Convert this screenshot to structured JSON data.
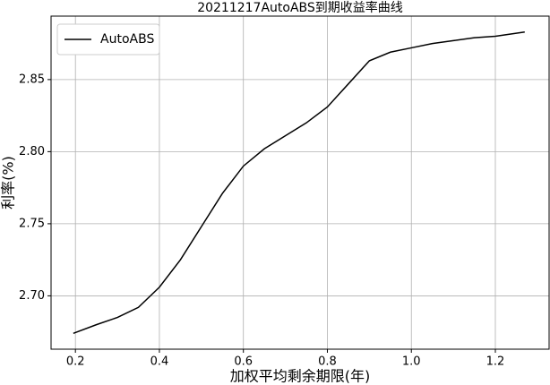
{
  "chart_data": {
    "type": "line",
    "title": "20211217AutoABS到期收益率曲线",
    "x_label": "加权平均剩余期限(年)",
    "y_label": "利率(%)",
    "x": [
      0.195,
      0.25,
      0.3,
      0.35,
      0.4,
      0.45,
      0.5,
      0.55,
      0.6,
      0.65,
      0.7,
      0.75,
      0.8,
      0.85,
      0.9,
      0.95,
      1.0,
      1.05,
      1.1,
      1.15,
      1.2,
      1.27
    ],
    "series": [
      {
        "name": "AutoABS",
        "color": "#000000",
        "values": [
          2.674,
          2.68,
          2.685,
          2.692,
          2.706,
          2.725,
          2.748,
          2.771,
          2.79,
          2.802,
          2.811,
          2.82,
          2.831,
          2.847,
          2.863,
          2.869,
          2.872,
          2.875,
          2.877,
          2.879,
          2.88,
          2.883
        ]
      }
    ],
    "xlim": [
      0.142,
      1.328
    ],
    "ylim": [
      2.663,
      2.894
    ],
    "xticks": [
      0.2,
      0.4,
      0.6,
      0.8,
      {
        "value": 1.0,
        "label": "1.0"
      },
      1.2
    ],
    "yticks": [
      {
        "value": 2.7,
        "label": "2.70"
      },
      2.75,
      {
        "value": 2.8,
        "label": "2.80"
      },
      2.85
    ],
    "grid": true,
    "legend": "upper-left"
  }
}
